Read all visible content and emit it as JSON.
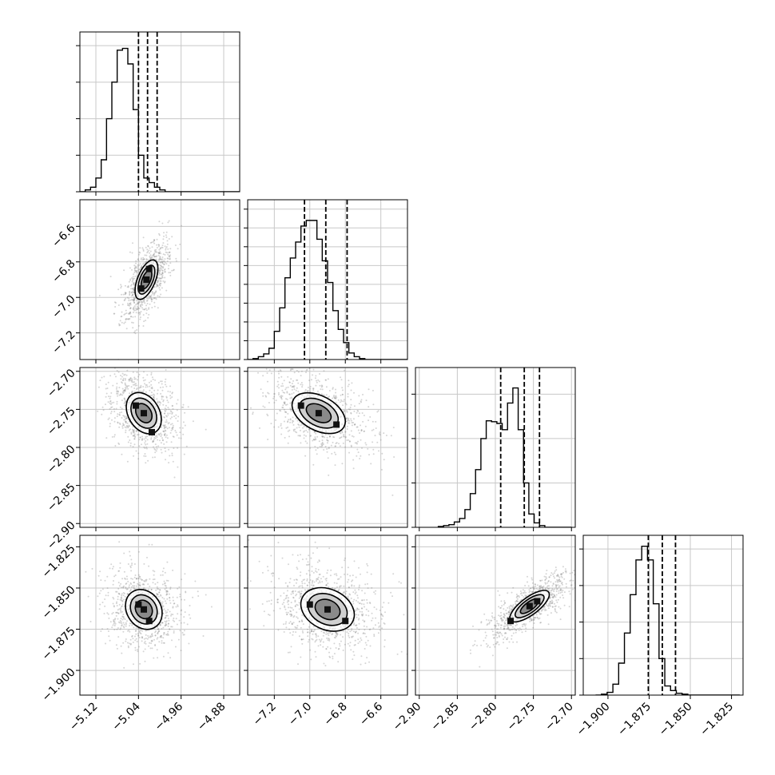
{
  "chart_data": {
    "type": "corner",
    "grid": true,
    "params": [
      {
        "range": [
          -5.15,
          -4.85
        ],
        "ticks": [
          {
            "v": -5.12,
            "label": "−5.12"
          },
          {
            "v": -5.04,
            "label": "−5.04"
          },
          {
            "v": -4.96,
            "label": "−4.96"
          },
          {
            "v": -4.88,
            "label": "−4.88"
          }
        ],
        "quantiles": [
          -5.04,
          -5.023,
          -5.005
        ],
        "hist": {
          "start": -5.15,
          "width": 0.01,
          "counts": [
            0,
            2,
            5,
            15,
            35,
            80,
            120,
            155,
            157,
            140,
            90,
            40,
            15,
            10,
            5,
            2,
            0,
            0,
            0,
            0,
            0,
            0,
            0,
            0,
            0,
            0,
            0,
            0,
            0,
            0
          ],
          "ymax": 175,
          "yticks": [
            0,
            40,
            80,
            120,
            160
          ]
        }
      },
      {
        "range": [
          -7.35,
          -6.45
        ],
        "ticks": [
          {
            "v": -7.2,
            "label": "−7.2"
          },
          {
            "v": -7.0,
            "label": "−7.0"
          },
          {
            "v": -6.8,
            "label": "−6.8"
          },
          {
            "v": -6.6,
            "label": "−6.6"
          }
        ],
        "quantiles": [
          -7.03,
          -6.91,
          -6.79
        ],
        "hist": {
          "start": -7.35,
          "width": 0.03,
          "counts": [
            0,
            1,
            3,
            6,
            12,
            30,
            55,
            87,
            108,
            125,
            142,
            148,
            148,
            128,
            105,
            82,
            52,
            32,
            18,
            7,
            3,
            1,
            0,
            0,
            0,
            0,
            0,
            0,
            0,
            0
          ],
          "ymax": 170,
          "yticks": [
            0,
            20,
            40,
            60,
            80,
            100,
            120,
            140,
            160
          ]
        }
      },
      {
        "range": [
          -2.905,
          -2.695
        ],
        "ticks": [
          {
            "v": -2.9,
            "label": "−2.90"
          },
          {
            "v": -2.85,
            "label": "−2.85"
          },
          {
            "v": -2.8,
            "label": "−2.80"
          },
          {
            "v": -2.75,
            "label": "−2.75"
          },
          {
            "v": -2.7,
            "label": "−2.70"
          }
        ],
        "yticks_labels": [
          {
            "v": -2.7,
            "label": "−2.70"
          },
          {
            "v": -2.75,
            "label": "−2.75"
          },
          {
            "v": -2.8,
            "label": "−2.80"
          },
          {
            "v": -2.85,
            "label": "−2.85"
          },
          {
            "v": -2.9,
            "label": "−2.90"
          }
        ],
        "quantiles": [
          -2.793,
          -2.762,
          -2.742
        ],
        "hist": {
          "start": -2.875,
          "width": 0.007,
          "counts": [
            1,
            2,
            3,
            6,
            10,
            20,
            38,
            65,
            100,
            120,
            119,
            117,
            110,
            140,
            157,
            110,
            50,
            15,
            5,
            2,
            0,
            0,
            0,
            0,
            0
          ],
          "ymax": 180,
          "yticks": [
            0,
            50,
            100,
            150
          ]
        }
      },
      {
        "range": [
          -1.915,
          -1.818
        ],
        "ticks": [
          {
            "v": -1.9,
            "label": "−1.900"
          },
          {
            "v": -1.875,
            "label": "−1.875"
          },
          {
            "v": -1.85,
            "label": "−1.850"
          },
          {
            "v": -1.825,
            "label": "−1.825"
          }
        ],
        "quantiles": [
          -1.8755,
          -1.867,
          -1.859
        ],
        "hist": {
          "start": -1.9075,
          "width": 0.0035,
          "counts": [
            0,
            1,
            3,
            12,
            35,
            68,
            110,
            148,
            163,
            148,
            100,
            40,
            10,
            5,
            2,
            1,
            0,
            0,
            0,
            0,
            0,
            0,
            0,
            0,
            0
          ],
          "ymax": 175,
          "yticks": [
            0,
            40,
            80,
            120,
            160
          ]
        }
      }
    ],
    "pairs": [
      {
        "row": 1,
        "col": 0,
        "rho": 0.96,
        "centers": [
          [
            -5.035,
            -6.95
          ],
          [
            -5.025,
            -6.9
          ],
          [
            -5.02,
            -6.84
          ]
        ]
      },
      {
        "row": 2,
        "col": 0,
        "rho": -0.8,
        "centers": [
          [
            -5.045,
            -2.745
          ],
          [
            -5.03,
            -2.755
          ],
          [
            -5.015,
            -2.78
          ]
        ]
      },
      {
        "row": 2,
        "col": 1,
        "rho": -0.85,
        "centers": [
          [
            -7.05,
            -2.745
          ],
          [
            -6.95,
            -2.755
          ],
          [
            -6.85,
            -2.77
          ]
        ]
      },
      {
        "row": 3,
        "col": 0,
        "rho": -0.7,
        "centers": [
          [
            -5.04,
            -1.86
          ],
          [
            -5.03,
            -1.863
          ],
          [
            -5.02,
            -1.87
          ]
        ]
      },
      {
        "row": 3,
        "col": 1,
        "rho": -0.75,
        "centers": [
          [
            -7.0,
            -1.86
          ],
          [
            -6.9,
            -1.863
          ],
          [
            -6.8,
            -1.87
          ]
        ]
      },
      {
        "row": 3,
        "col": 2,
        "rho": 0.97,
        "centers": [
          [
            -2.78,
            -1.87
          ],
          [
            -2.755,
            -1.861
          ],
          [
            -2.745,
            -1.858
          ]
        ]
      }
    ]
  }
}
